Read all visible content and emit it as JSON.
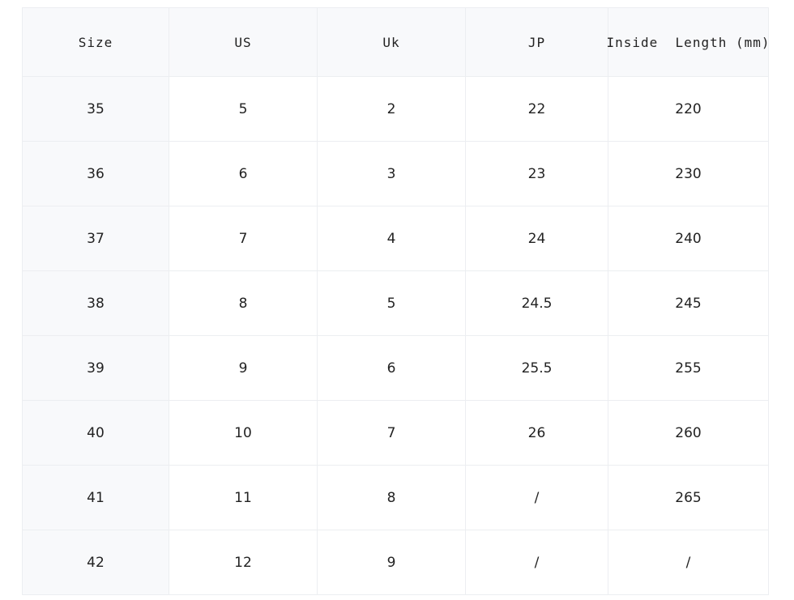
{
  "table": {
    "header": [
      "Size",
      "US",
      "Uk",
      "JP",
      "Inside  Length (mm)"
    ],
    "rows": [
      [
        "35",
        "5",
        "2",
        "22",
        "220"
      ],
      [
        "36",
        "6",
        "3",
        "23",
        "230"
      ],
      [
        "37",
        "7",
        "4",
        "24",
        "240"
      ],
      [
        "38",
        "8",
        "5",
        "24.5",
        "245"
      ],
      [
        "39",
        "9",
        "6",
        "25.5",
        "255"
      ],
      [
        "40",
        "10",
        "7",
        "26",
        "260"
      ],
      [
        "41",
        "11",
        "8",
        "/",
        "265"
      ],
      [
        "42",
        "12",
        "9",
        "/",
        "/"
      ]
    ]
  }
}
